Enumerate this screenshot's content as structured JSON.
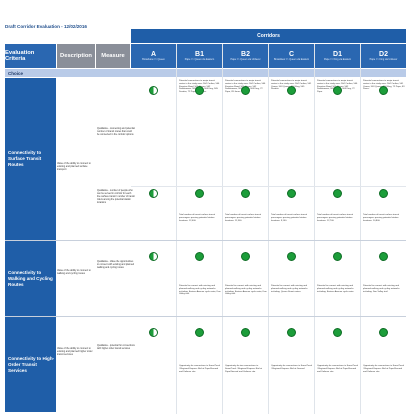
{
  "page": {
    "title": "Draft Corridor Evaluation - 12/02/2016",
    "corridors_banner": "Corridors"
  },
  "header": {
    "criteria_label": "Evaluation Criteria",
    "description_label": "Description",
    "measure_label": "Measure",
    "corridors": [
      {
        "code": "A",
        "sub": "Broadview => Queen"
      },
      {
        "code": "B1",
        "sub": "Pape => Queen via Eastern"
      },
      {
        "code": "B2",
        "sub": "Pape => Queen via Unilever"
      },
      {
        "code": "C",
        "sub": "Broadview => Queen via Eastern"
      },
      {
        "code": "D1",
        "sub": "Pape => King via Eastern"
      },
      {
        "code": "D2",
        "sub": "Pape => King via Unilever"
      }
    ]
  },
  "choice_label": "Choice",
  "sections": [
    {
      "criterion": "Connectivity to Surface Transit Routes",
      "description": "Value of the ability to connect to existing and planned surface transport",
      "measures": [
        "Qualitative - connecting and potential number of transit routes that could be connected in the corridor options",
        "Qualitative - number of people who can be served in corridor for each line surface transit / number of transit riders among the potential station locations"
      ],
      "ratings": [
        [
          "half",
          "full",
          "full",
          "full",
          "full",
          "full"
        ],
        [
          "half",
          "full",
          "full",
          "full",
          "full",
          "full"
        ]
      ],
      "corridor_notes_1": [
        "",
        "Potential connections to major transit routes in the study area: 504 Carlton, 506 Kingston Road, 501 Queen, 502 Downtowner, 503 Queen, 504 King, 505 Dundas, 72 Pape, 83 Jones.",
        "Potential connections to major transit routes in the study area: 504 Carlton, 506 Kingston Road, 501 Queen, 502 Downtowner, 503 Queen, 504 King, 72 Pape, 83 Jones.",
        "Potential connections to major transit routes in the study area: 504 Carlton, 501 Queen, 503 Queen, 504 King, 505 Dundas.",
        "Potential connections to major transit routes in the study area: 504 Carlton, 506 Kingston Road, 501 Queen, 502 Downtowner, 503 Queen, 504 King, 72 Pape.",
        "Potential connections to major transit routes in the study area: 504 Carlton, 501 Queen, 503 Queen, 504 King, 72 Pape, 83 Jones."
      ],
      "corridor_notes_2": [
        "",
        "Total number of transit surface transit passengers passing potential station locations: 12,000.",
        "Total number of transit surface transit passengers passing potential station locations: 11,300.",
        "Total number of transit surface transit passengers passing potential station locations: 9,100.",
        "Total number of transit surface transit passengers passing potential station locations: 12,700.",
        "Total number of transit surface transit passengers passing potential station locations: 10,800."
      ]
    },
    {
      "criterion": "Connectivity to Walking and Cycling Routes",
      "description": "Value of the ability to connect to walking and cycling routes",
      "measures": [
        "Qualitative - Value the opportunities to connect with existing and planned walking and cycling routes"
      ],
      "ratings": [
        [
          "half",
          "full",
          "full",
          "full",
          "full",
          "full"
        ]
      ],
      "corridor_notes_1": [
        "",
        "Potential to connect with existing and planned walking and cycling networks including: Eastern Avenue cycle route, Don Valley trail.",
        "Potential to connect with existing and planned walking and cycling networks including: Eastern Avenue cycle route, Don Valley trail.",
        "Potential to connect with existing and planned walking and cycling networks including: Queen Street routes.",
        "Potential to connect with existing and planned walking and cycling networks including: Eastern Avenue cycle route.",
        "Potential to connect with existing and planned walking and cycling networks including: Don Valley trail."
      ]
    },
    {
      "criterion": "Connectivity to High-Order Transit Services",
      "description": "Value of the ability to connect to existing and planned higher order transit services",
      "measures": [
        "Qualitative - potential for connections with higher order transit services"
      ],
      "ratings": [
        [
          "half",
          "full",
          "full",
          "full",
          "full",
          "full"
        ]
      ],
      "corridor_notes_1": [
        "",
        "Opportunity for connections to SmartTrack / Regional Express Rail at Pape/Gerrard and Unilever site.",
        "Opportunity for two connections to SmartTrack / Regional Express Rail at Pape/Gerrard and Unilever site.",
        "Opportunity for connections to SmartTrack / Regional Express Rail at Gerrard.",
        "Opportunity for connections to SmartTrack / Regional Express Rail at Pape/Gerrard and Unilever site.",
        "Opportunity for connections to SmartTrack / Regional Express Rail at Pape/Gerrard and Unilever site."
      ]
    }
  ],
  "colors": {
    "header_blue": "#2a67b1",
    "criteria_blue": "#1f5ea8",
    "rating_green": "#1c9d3a"
  }
}
